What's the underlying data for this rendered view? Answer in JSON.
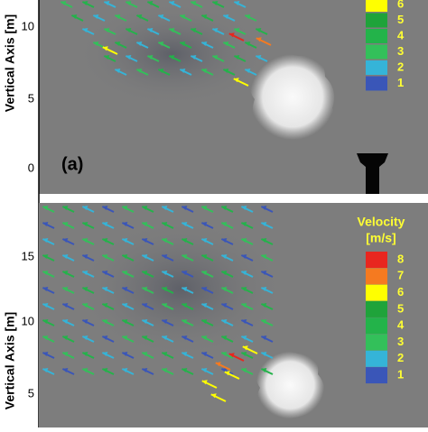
{
  "panels": [
    {
      "y_label": "Vertical Axis [m]",
      "y_ticks": [
        "10",
        "5",
        "0"
      ],
      "panel_label": "(a)",
      "legend": {
        "labels": [
          "6",
          "5",
          "4",
          "3",
          "2",
          "1"
        ]
      }
    },
    {
      "y_label": "Vertical Axis [m]",
      "y_ticks": [
        "15",
        "10",
        "5"
      ],
      "legend": {
        "title": "Velocity",
        "unit": "[m/s]",
        "labels": [
          "8",
          "7",
          "6",
          "5",
          "4",
          "3",
          "2",
          "1"
        ]
      }
    }
  ]
}
